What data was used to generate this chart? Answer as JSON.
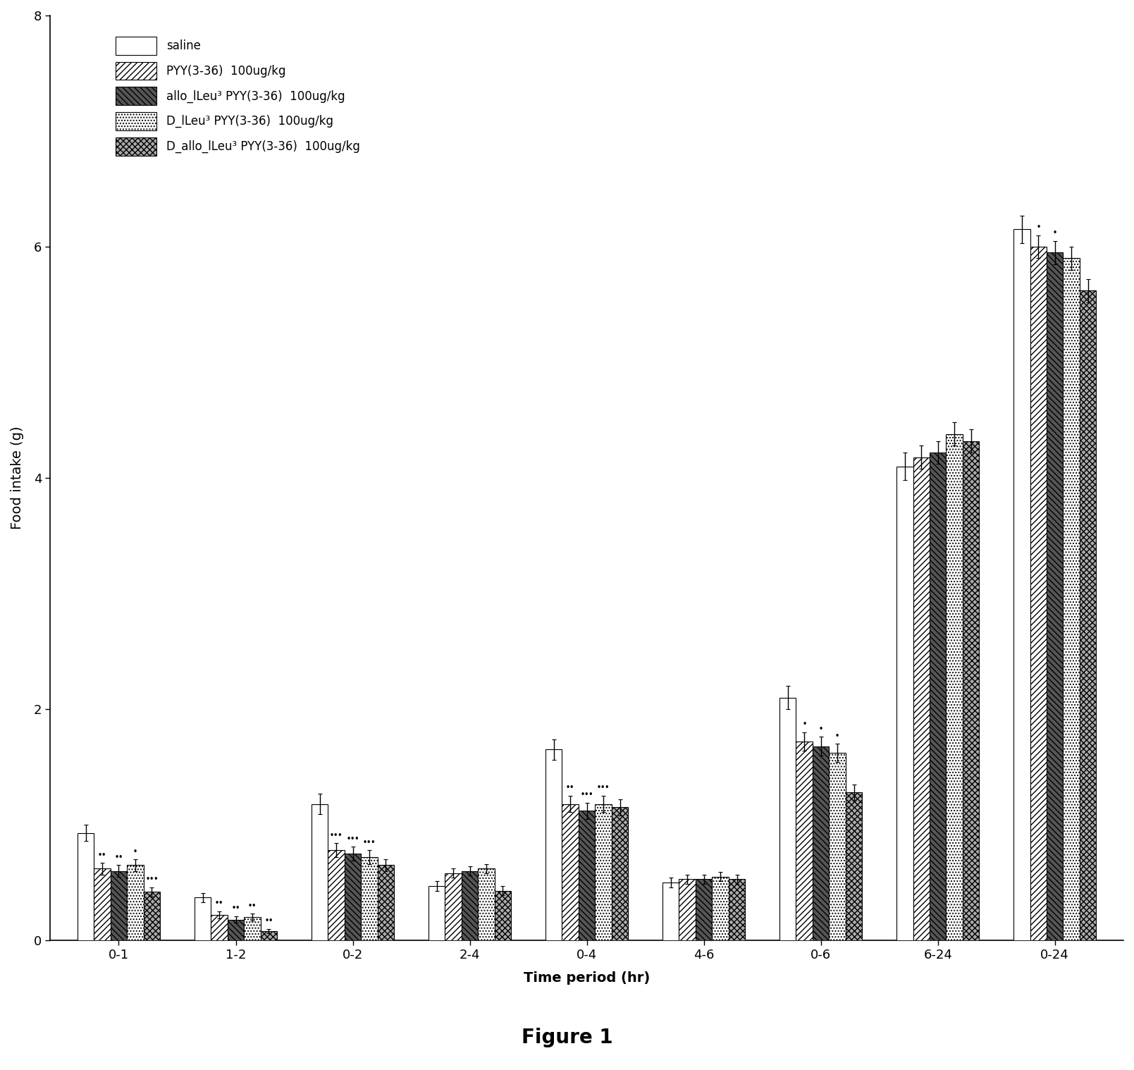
{
  "title": "Figure 1",
  "ylabel": "Food intake (g)",
  "xlabel": "Time period (hr)",
  "ylim": [
    0,
    8
  ],
  "yticks": [
    0,
    2,
    4,
    6,
    8
  ],
  "groups": [
    "0-1",
    "1-2",
    "0-2",
    "2-4",
    "0-4",
    "4-6",
    "0-6",
    "6-24",
    "0-24"
  ],
  "series_labels": [
    "saline",
    "PYY(3-36)  100ug/kg",
    "allo_lLeu³ PYY(3-36)  100ug/kg",
    "D_lLeu³ PYY(3-36)  100ug/kg",
    "D_allo_lLeu³ PYY(3-36)  100ug/kg"
  ],
  "values": [
    [
      0.93,
      0.37,
      1.18,
      0.47,
      1.65,
      0.5,
      2.1,
      4.1,
      6.15
    ],
    [
      0.62,
      0.22,
      0.78,
      0.58,
      1.18,
      0.53,
      1.72,
      4.18,
      6.0
    ],
    [
      0.6,
      0.18,
      0.75,
      0.6,
      1.12,
      0.53,
      1.68,
      4.22,
      5.95
    ],
    [
      0.65,
      0.2,
      0.72,
      0.62,
      1.18,
      0.55,
      1.62,
      4.38,
      5.9
    ],
    [
      0.42,
      0.08,
      0.65,
      0.43,
      1.15,
      0.53,
      1.28,
      4.32,
      5.62
    ]
  ],
  "errors": [
    [
      0.07,
      0.04,
      0.09,
      0.04,
      0.09,
      0.04,
      0.1,
      0.12,
      0.12
    ],
    [
      0.05,
      0.03,
      0.06,
      0.04,
      0.07,
      0.04,
      0.08,
      0.1,
      0.1
    ],
    [
      0.05,
      0.03,
      0.06,
      0.04,
      0.07,
      0.04,
      0.08,
      0.1,
      0.1
    ],
    [
      0.05,
      0.03,
      0.06,
      0.04,
      0.07,
      0.04,
      0.08,
      0.1,
      0.1
    ],
    [
      0.04,
      0.02,
      0.05,
      0.04,
      0.07,
      0.04,
      0.07,
      0.1,
      0.1
    ]
  ],
  "background_color": "white",
  "figure_title": "Figure 1"
}
